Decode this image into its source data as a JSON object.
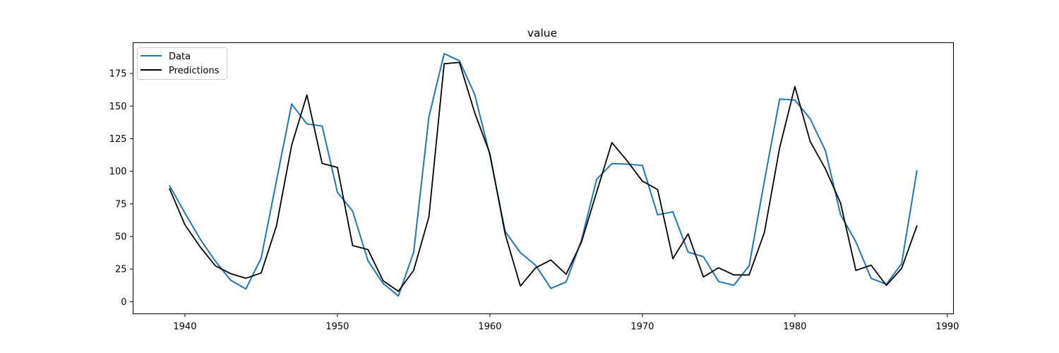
{
  "chart_data": {
    "type": "line",
    "title": "value",
    "xlabel": "",
    "ylabel": "",
    "xlim": [
      1936.6,
      1990.4
    ],
    "ylim": [
      -9.3,
      198.6
    ],
    "xticks": [
      1940,
      1950,
      1960,
      1970,
      1980,
      1990
    ],
    "yticks": [
      0,
      25,
      50,
      75,
      100,
      125,
      150,
      175
    ],
    "grid": false,
    "legend_position": "top-left",
    "x": [
      1939,
      1940,
      1941,
      1942,
      1943,
      1944,
      1945,
      1946,
      1947,
      1948,
      1949,
      1950,
      1951,
      1952,
      1953,
      1954,
      1955,
      1956,
      1957,
      1958,
      1959,
      1960,
      1961,
      1962,
      1963,
      1964,
      1965,
      1966,
      1967,
      1968,
      1969,
      1970,
      1971,
      1972,
      1973,
      1974,
      1975,
      1976,
      1977,
      1978,
      1979,
      1980,
      1981,
      1982,
      1983,
      1984,
      1985,
      1986,
      1987,
      1988
    ],
    "series": [
      {
        "name": "Data",
        "color": "#1f77b4",
        "values": [
          88.8,
          68.0,
          48.0,
          31.0,
          16.5,
          9.8,
          33.5,
          92.6,
          151.6,
          136.3,
          134.7,
          83.9,
          69.4,
          31.5,
          13.9,
          4.4,
          38.0,
          141.7,
          190.2,
          184.8,
          159.0,
          112.3,
          53.9,
          37.6,
          27.9,
          10.2,
          15.1,
          47.0,
          93.8,
          105.9,
          105.5,
          104.5,
          66.6,
          68.9,
          38.0,
          34.5,
          15.5,
          12.6,
          27.5,
          92.5,
          155.4,
          154.6,
          140.4,
          115.9,
          66.6,
          45.9,
          17.9,
          13.4,
          29.2,
          100.2
        ]
      },
      {
        "name": "Predictions",
        "color": "#000000",
        "values": [
          86.5,
          59.0,
          42.0,
          27.5,
          21.5,
          18.0,
          22.0,
          58.0,
          120.0,
          158.5,
          106.0,
          103.0,
          43.0,
          40.0,
          16.0,
          8.0,
          24.0,
          65.0,
          182.5,
          183.5,
          145.0,
          113.5,
          52.0,
          12.0,
          26.0,
          32.0,
          21.0,
          45.5,
          84.0,
          122.0,
          108.0,
          92.5,
          86.0,
          33.0,
          52.0,
          19.0,
          26.0,
          20.5,
          20.5,
          53.0,
          118.0,
          165.0,
          123.0,
          102.0,
          75.5,
          24.0,
          28.0,
          12.5,
          25.5,
          58.0
        ]
      }
    ]
  }
}
